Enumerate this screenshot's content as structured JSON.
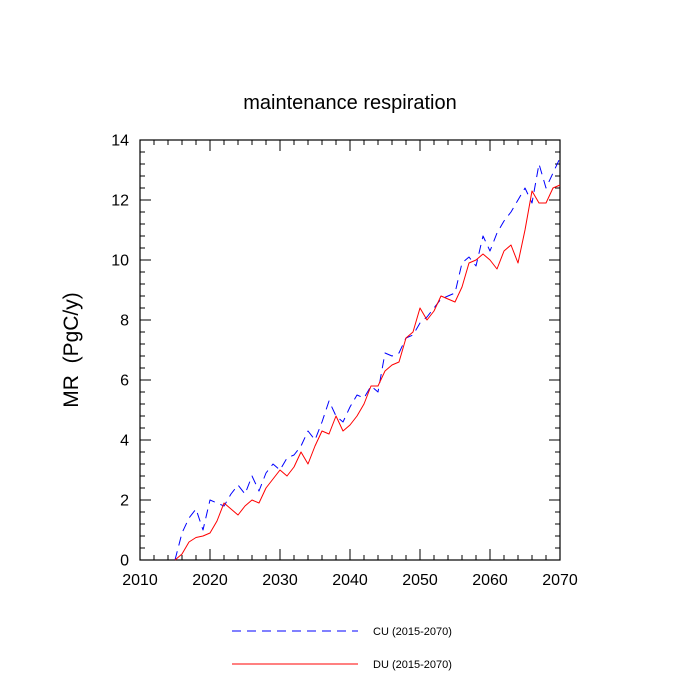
{
  "chart_data": {
    "type": "line",
    "title": "maintenance respiration",
    "xlabel": "",
    "ylabel": "MR  (PgC/y)",
    "xlim": [
      2010,
      2070
    ],
    "ylim": [
      0,
      14
    ],
    "x_ticks": [
      2010,
      2020,
      2030,
      2040,
      2050,
      2060,
      2070
    ],
    "y_ticks": [
      0,
      2,
      4,
      6,
      8,
      10,
      12,
      14
    ],
    "x_tick_labels": [
      "2010",
      "2020",
      "2030",
      "2040",
      "2050",
      "2060",
      "2070"
    ],
    "y_tick_labels": [
      "0",
      "2",
      "4",
      "6",
      "8",
      "10",
      "12",
      "14"
    ],
    "grid": false,
    "legend_position": "bottom",
    "x": [
      2015,
      2016,
      2017,
      2018,
      2019,
      2020,
      2021,
      2022,
      2023,
      2024,
      2025,
      2026,
      2027,
      2028,
      2029,
      2030,
      2031,
      2032,
      2033,
      2034,
      2035,
      2036,
      2037,
      2038,
      2039,
      2040,
      2041,
      2042,
      2043,
      2044,
      2045,
      2046,
      2047,
      2048,
      2049,
      2050,
      2051,
      2052,
      2053,
      2054,
      2055,
      2056,
      2057,
      2058,
      2059,
      2060,
      2061,
      2062,
      2063,
      2064,
      2065,
      2066,
      2067,
      2068,
      2069,
      2070
    ],
    "series": [
      {
        "name": "CU (2015-2070)",
        "color": "#0000ff",
        "style": "dashed",
        "values": [
          0.0,
          0.9,
          1.4,
          1.7,
          1.0,
          2.0,
          1.9,
          1.8,
          2.2,
          2.5,
          2.2,
          2.8,
          2.3,
          2.9,
          3.2,
          3.0,
          3.4,
          3.5,
          3.8,
          4.3,
          4.0,
          4.6,
          5.3,
          4.8,
          4.6,
          5.1,
          5.5,
          5.4,
          5.8,
          5.6,
          6.9,
          6.8,
          6.9,
          7.4,
          7.5,
          7.9,
          8.1,
          8.4,
          8.7,
          8.8,
          8.9,
          9.9,
          10.1,
          9.8,
          10.8,
          10.3,
          10.9,
          11.3,
          11.6,
          12.0,
          12.4,
          11.9,
          13.2,
          12.4,
          12.9,
          13.4
        ]
      },
      {
        "name": "DU (2015-2070)",
        "color": "#ff0000",
        "style": "solid",
        "values": [
          0.0,
          0.2,
          0.6,
          0.75,
          0.8,
          0.9,
          1.3,
          1.9,
          1.7,
          1.5,
          1.8,
          2.0,
          1.9,
          2.4,
          2.7,
          3.0,
          2.8,
          3.1,
          3.6,
          3.2,
          3.8,
          4.3,
          4.2,
          4.8,
          4.3,
          4.5,
          4.8,
          5.2,
          5.8,
          5.8,
          6.3,
          6.5,
          6.6,
          7.4,
          7.6,
          8.4,
          8.0,
          8.3,
          8.8,
          8.7,
          8.6,
          9.1,
          9.9,
          10.0,
          10.2,
          10.0,
          9.7,
          10.3,
          10.5,
          9.9,
          11.0,
          12.3,
          11.9,
          11.9,
          12.4,
          12.5
        ]
      }
    ]
  }
}
